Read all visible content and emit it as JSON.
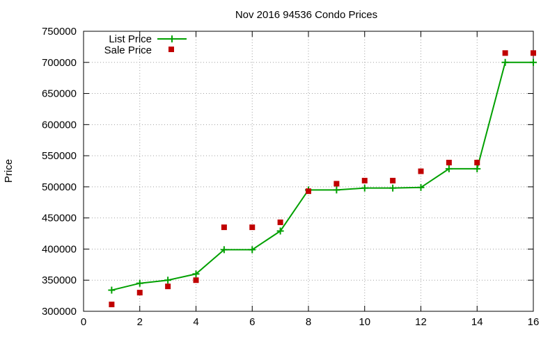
{
  "chart_data": {
    "type": "line",
    "title": "Nov 2016 94536 Condo Prices",
    "xlabel": "",
    "ylabel": "Price",
    "xlim": [
      0,
      16
    ],
    "ylim": [
      300000,
      750000
    ],
    "x_ticks": [
      "0",
      "2",
      "4",
      "6",
      "8",
      "10",
      "12",
      "14",
      "16"
    ],
    "y_ticks": [
      "300000",
      "350000",
      "400000",
      "450000",
      "500000",
      "550000",
      "600000",
      "650000",
      "700000",
      "750000"
    ],
    "grid": true,
    "legend_position": "top-left",
    "x": [
      1,
      2,
      3,
      4,
      5,
      6,
      7,
      8,
      9,
      10,
      11,
      12,
      13,
      14,
      15,
      16
    ],
    "series": [
      {
        "name": "List Price",
        "style": "lines+points",
        "marker": "plus",
        "color": "#00a000",
        "values": [
          334000,
          345000,
          350000,
          360000,
          399000,
          399000,
          429000,
          495000,
          495000,
          498000,
          498000,
          499000,
          529000,
          529000,
          700000,
          700000
        ]
      },
      {
        "name": "Sale Price",
        "style": "points",
        "marker": "square",
        "color": "#c00000",
        "values": [
          311000,
          330000,
          340000,
          350000,
          435000,
          435000,
          443000,
          493000,
          505000,
          510000,
          510000,
          525000,
          539000,
          539000,
          715000,
          715000
        ]
      }
    ]
  }
}
